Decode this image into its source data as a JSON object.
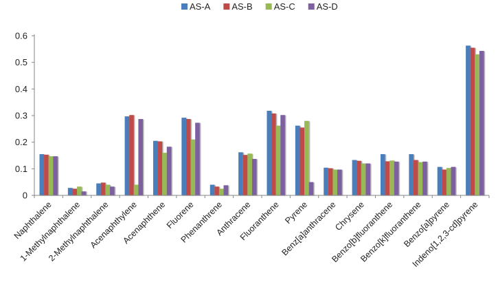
{
  "chart_data": {
    "type": "bar",
    "title": "",
    "xlabel": "",
    "ylabel": "",
    "ylim": [
      0,
      0.6
    ],
    "yticks": [
      "0",
      "0.1",
      "0.2",
      "0.3",
      "0.4",
      "0.5",
      "0.6"
    ],
    "grid": false,
    "legend_position": "top-center",
    "categories": [
      "Naphthalene",
      "1-Methylnaphthalene",
      "2-Methylnaphthalene",
      "Acenaphthylene",
      "Acenaphthene",
      "Fluorene",
      "Phenanthrene",
      "Anthracene",
      "Fluoranthene",
      "Pyrene",
      "Benz[a]anthracene",
      "Chrysene",
      "Benzo[b]fluoranthene",
      "Benzo[k]fluoranthene",
      "Benzo[a]pyrene",
      "Indeno[1,2,3-cd]pyrene"
    ],
    "series": [
      {
        "name": "AS-A",
        "color": "#4a7ebb",
        "values": [
          0.155,
          0.028,
          0.045,
          0.297,
          0.205,
          0.292,
          0.04,
          0.162,
          0.318,
          0.262,
          0.104,
          0.133,
          0.155,
          0.155,
          0.107,
          0.563
        ]
      },
      {
        "name": "AS-B",
        "color": "#be4b48",
        "values": [
          0.153,
          0.025,
          0.048,
          0.302,
          0.203,
          0.287,
          0.033,
          0.152,
          0.308,
          0.255,
          0.102,
          0.13,
          0.128,
          0.133,
          0.097,
          0.555
        ]
      },
      {
        "name": "AS-C",
        "color": "#98b954",
        "values": [
          0.147,
          0.033,
          0.04,
          0.04,
          0.16,
          0.21,
          0.025,
          0.157,
          0.262,
          0.28,
          0.097,
          0.12,
          0.131,
          0.125,
          0.103,
          0.53
        ]
      },
      {
        "name": "AS-D",
        "color": "#7d60a0",
        "values": [
          0.147,
          0.015,
          0.033,
          0.287,
          0.183,
          0.273,
          0.038,
          0.137,
          0.302,
          0.05,
          0.097,
          0.12,
          0.127,
          0.127,
          0.107,
          0.543
        ]
      }
    ]
  }
}
